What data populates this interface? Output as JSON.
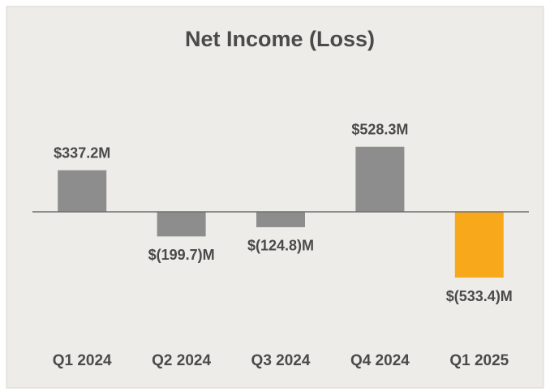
{
  "chart_data": {
    "type": "bar",
    "title": "Net Income (Loss)",
    "categories": [
      "Q1 2024",
      "Q2 2024",
      "Q3 2024",
      "Q4 2024",
      "Q1 2025"
    ],
    "values": [
      337.2,
      -199.7,
      -124.8,
      528.3,
      -533.4
    ],
    "value_labels": [
      "$337.2M",
      "$(199.7)M",
      "$(124.8)M",
      "$528.3M",
      "$(533.4)M"
    ],
    "colors": [
      "#8d8d8d",
      "#8d8d8d",
      "#8d8d8d",
      "#8d8d8d",
      "#f7a81b"
    ]
  }
}
